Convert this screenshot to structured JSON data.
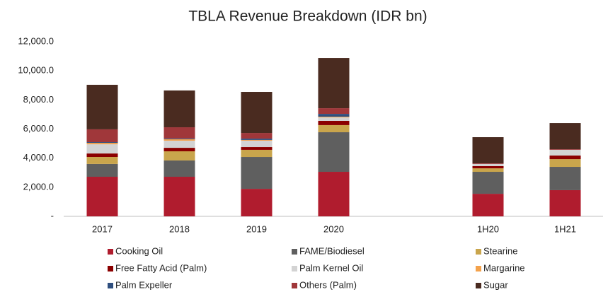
{
  "chart_data": {
    "type": "stacked_bar",
    "title": "TBLA Revenue Breakdown (IDR bn)",
    "categories": [
      "2017",
      "2018",
      "2019",
      "2020",
      null,
      "1H20",
      "1H21"
    ],
    "ylim": [
      0,
      12000
    ],
    "yticks": [
      {
        "value": 0,
        "label": "-"
      },
      {
        "value": 2000,
        "label": "2,000.0"
      },
      {
        "value": 4000,
        "label": "4,000.0"
      },
      {
        "value": 6000,
        "label": "6,000.0"
      },
      {
        "value": 8000,
        "label": "8,000.0"
      },
      {
        "value": 10000,
        "label": "10,000.0"
      },
      {
        "value": 12000,
        "label": "12,000.0"
      }
    ],
    "grid": false,
    "series": [
      {
        "name": "Cooking Oil",
        "color": "#b01c2e",
        "values": [
          2720,
          2720,
          1890,
          3060,
          null,
          1550,
          1800
        ]
      },
      {
        "name": "FAME/Biodiesel",
        "color": "#5f5f5f",
        "values": [
          880,
          1120,
          2190,
          2720,
          null,
          1510,
          1600
        ]
      },
      {
        "name": "Stearine",
        "color": "#c9a54c",
        "values": [
          480,
          630,
          490,
          490,
          null,
          240,
          530
        ]
      },
      {
        "name": "Free Fatty Acid (Palm)",
        "color": "#8b0000",
        "values": [
          240,
          240,
          190,
          290,
          null,
          150,
          250
        ]
      },
      {
        "name": "Palm Kernel Oil",
        "color": "#d3d3d3",
        "values": [
          630,
          490,
          440,
          240,
          null,
          150,
          390
        ]
      },
      {
        "name": "Margarine",
        "color": "#f4a24c",
        "values": [
          100,
          100,
          50,
          50,
          null,
          0,
          0
        ]
      },
      {
        "name": "Palm Expeller",
        "color": "#2f4f7f",
        "values": [
          50,
          50,
          90,
          190,
          null,
          0,
          0
        ]
      },
      {
        "name": "Others (Palm)",
        "color": "#a0373a",
        "values": [
          880,
          770,
          390,
          390,
          null,
          40,
          40
        ]
      },
      {
        "name": "Sugar",
        "color": "#4a2b20",
        "values": [
          3060,
          2530,
          2820,
          3450,
          null,
          1800,
          1800
        ]
      }
    ]
  }
}
